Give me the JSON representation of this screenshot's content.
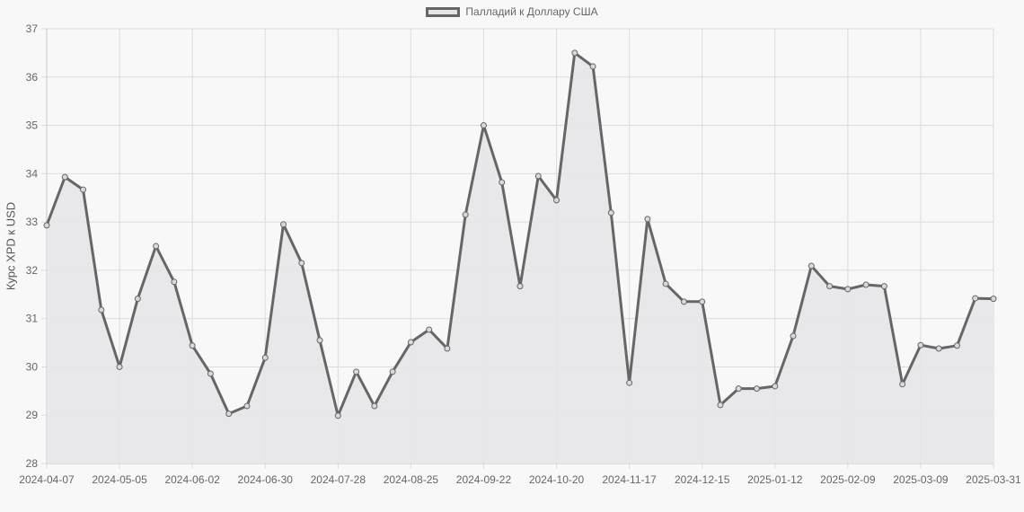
{
  "legend": {
    "label": "Палладий к Доллару США"
  },
  "axis": {
    "ylabel": "Курс XPD к USD"
  },
  "colors": {
    "line": "#666666",
    "fill": "#e6e6e8",
    "grid": "#dcdcdc",
    "tick_text": "#666666",
    "background": "#f8f8f8"
  },
  "chart_data": {
    "type": "area",
    "title": "",
    "xlabel": "",
    "ylabel": "Курс XPD к USD",
    "ylim": [
      28,
      37
    ],
    "yticks": [
      28,
      29,
      30,
      31,
      32,
      33,
      34,
      35,
      36,
      37
    ],
    "grid": true,
    "legend_position": "top",
    "xtick_labels": [
      "2024-04-07",
      "2024-05-05",
      "2024-06-02",
      "2024-06-30",
      "2024-07-28",
      "2024-08-25",
      "2024-09-22",
      "2024-10-20",
      "2024-11-17",
      "2024-12-15",
      "2025-01-12",
      "2025-02-09",
      "2025-03-09",
      "2025-03-31"
    ],
    "series": [
      {
        "name": "Палладий к Доллару США",
        "values": [
          32.93,
          33.93,
          33.67,
          31.18,
          30.0,
          31.41,
          32.5,
          31.76,
          30.44,
          29.86,
          29.03,
          29.19,
          30.19,
          32.95,
          32.15,
          30.55,
          28.99,
          29.9,
          29.19,
          29.9,
          30.51,
          30.77,
          30.38,
          33.15,
          35.0,
          33.82,
          31.67,
          33.95,
          33.45,
          36.5,
          36.22,
          33.19,
          29.67,
          33.06,
          31.72,
          31.35,
          31.35,
          29.21,
          29.55,
          29.55,
          29.6,
          30.64,
          32.09,
          31.67,
          31.61,
          31.7,
          31.67,
          29.64,
          30.45,
          30.38,
          30.44,
          31.42,
          31.41
        ]
      }
    ]
  }
}
